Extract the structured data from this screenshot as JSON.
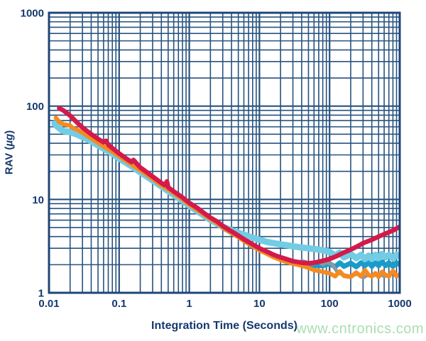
{
  "watermark": {
    "text": "www.cntronics.com",
    "color": "#9bd9a4"
  },
  "styles": {
    "background": "#ffffff",
    "grid_color": "#27537f",
    "frame_color": "#1d4677",
    "text_color": "#16386e"
  },
  "chart_data": {
    "type": "line",
    "title": "",
    "xlabel": "Integration Time (Seconds)",
    "ylabel_prefix": "RAV (",
    "ylabel_unit": "µg",
    "ylabel_suffix": ")",
    "x_scale": "log",
    "y_scale": "log",
    "xlim": [
      0.01,
      1000
    ],
    "ylim": [
      1,
      1000
    ],
    "grid": "log major and minor gridlines, both axes",
    "legend": "none",
    "x_ticks": [
      {
        "value": 0.01,
        "label": "0.01"
      },
      {
        "value": 0.1,
        "label": "0.1"
      },
      {
        "value": 1,
        "label": "1"
      },
      {
        "value": 10,
        "label": "10"
      },
      {
        "value": 100,
        "label": "100"
      },
      {
        "value": 1000,
        "label": "1000"
      }
    ],
    "y_ticks": [
      {
        "value": 1,
        "label": "1"
      },
      {
        "value": 10,
        "label": "10"
      },
      {
        "value": 100,
        "label": "100"
      },
      {
        "value": 1000,
        "label": "1000"
      }
    ],
    "series": [
      {
        "name": "trace-blue",
        "color": "#199cc9",
        "width": 7,
        "points": [
          [
            0.012,
            63
          ],
          [
            0.014,
            57
          ],
          [
            0.016,
            53
          ],
          [
            0.02,
            52
          ],
          [
            0.025,
            49
          ],
          [
            0.03,
            46
          ],
          [
            0.04,
            41.5
          ],
          [
            0.05,
            37.5
          ],
          [
            0.06,
            34.5
          ],
          [
            0.07,
            32.5
          ],
          [
            0.08,
            30.5
          ],
          [
            0.1,
            27
          ],
          [
            0.13,
            24
          ],
          [
            0.16,
            21.8
          ],
          [
            0.2,
            19.4
          ],
          [
            0.25,
            17.3
          ],
          [
            0.3,
            15.8
          ],
          [
            0.4,
            13.7
          ],
          [
            0.5,
            12.2
          ],
          [
            0.6,
            11.1
          ],
          [
            0.8,
            9.6
          ],
          [
            1,
            8.5
          ],
          [
            1.3,
            7.45
          ],
          [
            1.6,
            6.7
          ],
          [
            2,
            6.0
          ],
          [
            2.5,
            5.45
          ],
          [
            3,
            5.0
          ],
          [
            4,
            4.4
          ],
          [
            5,
            4.0
          ],
          [
            6,
            3.7
          ],
          [
            8,
            3.25
          ],
          [
            10,
            2.95
          ],
          [
            13,
            2.7
          ],
          [
            16,
            2.5
          ],
          [
            20,
            2.35
          ],
          [
            25,
            2.22
          ],
          [
            30,
            2.15
          ],
          [
            40,
            2.05
          ],
          [
            50,
            2.0
          ],
          [
            60,
            1.95
          ],
          [
            80,
            1.95
          ],
          [
            100,
            2.05
          ],
          [
            120,
            1.9
          ],
          [
            140,
            2.1
          ],
          [
            160,
            1.92
          ],
          [
            200,
            2.08
          ],
          [
            240,
            1.9
          ],
          [
            280,
            2.1
          ],
          [
            320,
            1.95
          ],
          [
            360,
            2.12
          ],
          [
            400,
            1.92
          ],
          [
            450,
            2.1
          ],
          [
            500,
            1.95
          ],
          [
            560,
            2.15
          ],
          [
            630,
            1.95
          ],
          [
            700,
            2.1
          ],
          [
            800,
            1.92
          ],
          [
            900,
            2.1
          ],
          [
            1000,
            2.0
          ]
        ]
      },
      {
        "name": "trace-gray",
        "color": "#8d98a3",
        "width": 5,
        "points": [
          [
            40,
            2.2
          ],
          [
            50,
            2.1
          ],
          [
            60,
            2.05
          ],
          [
            70,
            2.18
          ],
          [
            80,
            2.0
          ],
          [
            90,
            2.12
          ],
          [
            110,
            2.0
          ],
          [
            130,
            1.65
          ],
          [
            160,
            1.55
          ],
          [
            200,
            1.5
          ],
          [
            250,
            1.6
          ],
          [
            300,
            1.45
          ],
          [
            350,
            1.55
          ],
          [
            400,
            1.5
          ],
          [
            500,
            1.6
          ],
          [
            600,
            1.5
          ],
          [
            700,
            1.55
          ]
        ]
      },
      {
        "name": "trace-lightblue",
        "color": "#72cce4",
        "width": 9,
        "points": [
          [
            0.012,
            65
          ],
          [
            0.014,
            58
          ],
          [
            0.016,
            54
          ],
          [
            0.02,
            53
          ],
          [
            0.025,
            50
          ],
          [
            0.03,
            47
          ],
          [
            0.04,
            42
          ],
          [
            0.05,
            38
          ],
          [
            0.06,
            35
          ],
          [
            0.07,
            33
          ],
          [
            0.08,
            31
          ],
          [
            0.1,
            27.5
          ],
          [
            0.13,
            24.3
          ],
          [
            0.16,
            22
          ],
          [
            0.2,
            19.6
          ],
          [
            0.25,
            17.5
          ],
          [
            0.3,
            16
          ],
          [
            0.4,
            13.8
          ],
          [
            0.5,
            12.3
          ],
          [
            0.6,
            11.2
          ],
          [
            0.8,
            9.7
          ],
          [
            1,
            8.55
          ],
          [
            1.3,
            7.5
          ],
          [
            1.6,
            6.75
          ],
          [
            2,
            6.05
          ],
          [
            2.5,
            5.5
          ],
          [
            3,
            5.1
          ],
          [
            4,
            4.65
          ],
          [
            5,
            4.4
          ],
          [
            6,
            4.2
          ],
          [
            8,
            3.9
          ],
          [
            10,
            3.7
          ],
          [
            13,
            3.5
          ],
          [
            16,
            3.4
          ],
          [
            20,
            3.3
          ],
          [
            25,
            3.22
          ],
          [
            30,
            3.15
          ],
          [
            40,
            3.05
          ],
          [
            50,
            3.0
          ],
          [
            60,
            2.95
          ],
          [
            80,
            2.85
          ],
          [
            100,
            2.75
          ],
          [
            120,
            2.5
          ],
          [
            140,
            2.7
          ],
          [
            160,
            2.4
          ],
          [
            200,
            2.6
          ],
          [
            240,
            2.35
          ],
          [
            280,
            2.55
          ],
          [
            320,
            2.3
          ],
          [
            360,
            2.5
          ],
          [
            400,
            2.3
          ],
          [
            450,
            2.55
          ],
          [
            500,
            2.35
          ],
          [
            560,
            2.6
          ],
          [
            630,
            2.4
          ],
          [
            700,
            2.55
          ],
          [
            800,
            2.35
          ],
          [
            900,
            2.55
          ],
          [
            1000,
            2.45
          ]
        ]
      },
      {
        "name": "trace-orange",
        "color": "#f68a1e",
        "width": 6,
        "points": [
          [
            0.0125,
            75
          ],
          [
            0.014,
            68
          ],
          [
            0.016,
            64
          ],
          [
            0.02,
            62
          ],
          [
            0.022,
            58
          ],
          [
            0.025,
            56
          ],
          [
            0.03,
            52
          ],
          [
            0.04,
            45
          ],
          [
            0.05,
            40.5
          ],
          [
            0.06,
            37
          ],
          [
            0.07,
            34.5
          ],
          [
            0.08,
            32.5
          ],
          [
            0.1,
            29
          ],
          [
            0.13,
            25.5
          ],
          [
            0.16,
            23
          ],
          [
            0.2,
            20.5
          ],
          [
            0.25,
            18.3
          ],
          [
            0.3,
            16.6
          ],
          [
            0.4,
            14.2
          ],
          [
            0.5,
            12.8
          ],
          [
            0.6,
            11.6
          ],
          [
            0.8,
            10
          ],
          [
            1,
            8.8
          ],
          [
            1.3,
            7.7
          ],
          [
            1.6,
            6.9
          ],
          [
            2,
            6.15
          ],
          [
            2.5,
            5.55
          ],
          [
            3,
            5.0
          ],
          [
            4,
            4.35
          ],
          [
            5,
            3.95
          ],
          [
            6,
            3.6
          ],
          [
            8,
            3.15
          ],
          [
            10,
            2.85
          ],
          [
            13,
            2.6
          ],
          [
            16,
            2.4
          ],
          [
            20,
            2.25
          ],
          [
            25,
            2.12
          ],
          [
            30,
            2.05
          ],
          [
            40,
            1.95
          ],
          [
            50,
            1.85
          ],
          [
            60,
            1.75
          ],
          [
            80,
            1.68
          ],
          [
            100,
            1.62
          ],
          [
            120,
            1.5
          ],
          [
            140,
            1.7
          ],
          [
            160,
            1.52
          ],
          [
            200,
            1.48
          ],
          [
            240,
            1.65
          ],
          [
            280,
            1.5
          ],
          [
            320,
            1.75
          ],
          [
            360,
            1.55
          ],
          [
            400,
            1.5
          ],
          [
            450,
            1.62
          ],
          [
            500,
            1.48
          ],
          [
            560,
            1.68
          ],
          [
            630,
            1.55
          ],
          [
            700,
            1.5
          ],
          [
            800,
            1.72
          ],
          [
            900,
            1.5
          ],
          [
            1000,
            1.58
          ]
        ]
      },
      {
        "name": "trace-red",
        "color": "#d31a4b",
        "width": 6.5,
        "points": [
          [
            0.014,
            95
          ],
          [
            0.016,
            90
          ],
          [
            0.02,
            79
          ],
          [
            0.025,
            67
          ],
          [
            0.03,
            59
          ],
          [
            0.04,
            50
          ],
          [
            0.05,
            44.5
          ],
          [
            0.06,
            41
          ],
          [
            0.065,
            42.5
          ],
          [
            0.07,
            38.5
          ],
          [
            0.08,
            35.5
          ],
          [
            0.1,
            31
          ],
          [
            0.13,
            27
          ],
          [
            0.15,
            25.2
          ],
          [
            0.16,
            26.5
          ],
          [
            0.18,
            24
          ],
          [
            0.2,
            22
          ],
          [
            0.25,
            19.5
          ],
          [
            0.3,
            17.6
          ],
          [
            0.4,
            15
          ],
          [
            0.45,
            14.2
          ],
          [
            0.48,
            15.6
          ],
          [
            0.5,
            13.5
          ],
          [
            0.6,
            12.2
          ],
          [
            0.8,
            10.5
          ],
          [
            1,
            9.2
          ],
          [
            1.3,
            8.1
          ],
          [
            1.6,
            7.2
          ],
          [
            2,
            6.4
          ],
          [
            2.5,
            5.8
          ],
          [
            3,
            5.2
          ],
          [
            4,
            4.55
          ],
          [
            5,
            4.1
          ],
          [
            6,
            3.75
          ],
          [
            8,
            3.3
          ],
          [
            10,
            3.0
          ],
          [
            13,
            2.75
          ],
          [
            16,
            2.55
          ],
          [
            20,
            2.4
          ],
          [
            25,
            2.28
          ],
          [
            30,
            2.18
          ],
          [
            40,
            2.1
          ],
          [
            50,
            2.07
          ],
          [
            60,
            2.1
          ],
          [
            70,
            2.15
          ],
          [
            80,
            2.2
          ],
          [
            100,
            2.3
          ],
          [
            130,
            2.5
          ],
          [
            160,
            2.7
          ],
          [
            200,
            2.9
          ],
          [
            250,
            3.15
          ],
          [
            300,
            3.4
          ],
          [
            400,
            3.7
          ],
          [
            500,
            4.0
          ],
          [
            600,
            4.25
          ],
          [
            800,
            4.65
          ],
          [
            1000,
            5.1
          ]
        ]
      }
    ]
  }
}
